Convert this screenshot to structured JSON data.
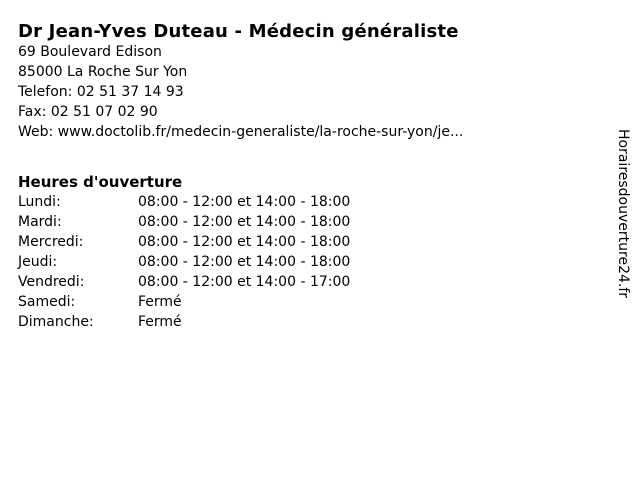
{
  "page": {
    "title": "Dr Jean-Yves Duteau - Médecin généraliste",
    "background_color": "#ffffff",
    "text_color": "#000000"
  },
  "contact": {
    "address_line1": "69 Boulevard Edison",
    "address_line2": "85000 La Roche Sur Yon",
    "phone_label": "Telefon:",
    "phone_value": "02 51 37 14 93",
    "fax_label": "Fax:",
    "fax_value": "02 51 07 02 90",
    "web_label": "Web:",
    "web_value": "www.doctolib.fr/medecin-generaliste/la-roche-sur-yon/je..."
  },
  "hours": {
    "heading": "Heures d'ouverture",
    "rows": [
      {
        "day": "Lundi:",
        "times": "08:00 - 12:00 et 14:00 - 18:00"
      },
      {
        "day": "Mardi:",
        "times": "08:00 - 12:00 et 14:00 - 18:00"
      },
      {
        "day": "Mercredi:",
        "times": "08:00 - 12:00 et 14:00 - 18:00"
      },
      {
        "day": "Jeudi:",
        "times": "08:00 - 12:00 et 14:00 - 18:00"
      },
      {
        "day": "Vendredi:",
        "times": "08:00 - 12:00 et 14:00 - 17:00"
      },
      {
        "day": "Samedi:",
        "times": "Fermé"
      },
      {
        "day": "Dimanche:",
        "times": "Fermé"
      }
    ]
  },
  "watermark": {
    "text": "Horairesdouverture24.fr"
  }
}
